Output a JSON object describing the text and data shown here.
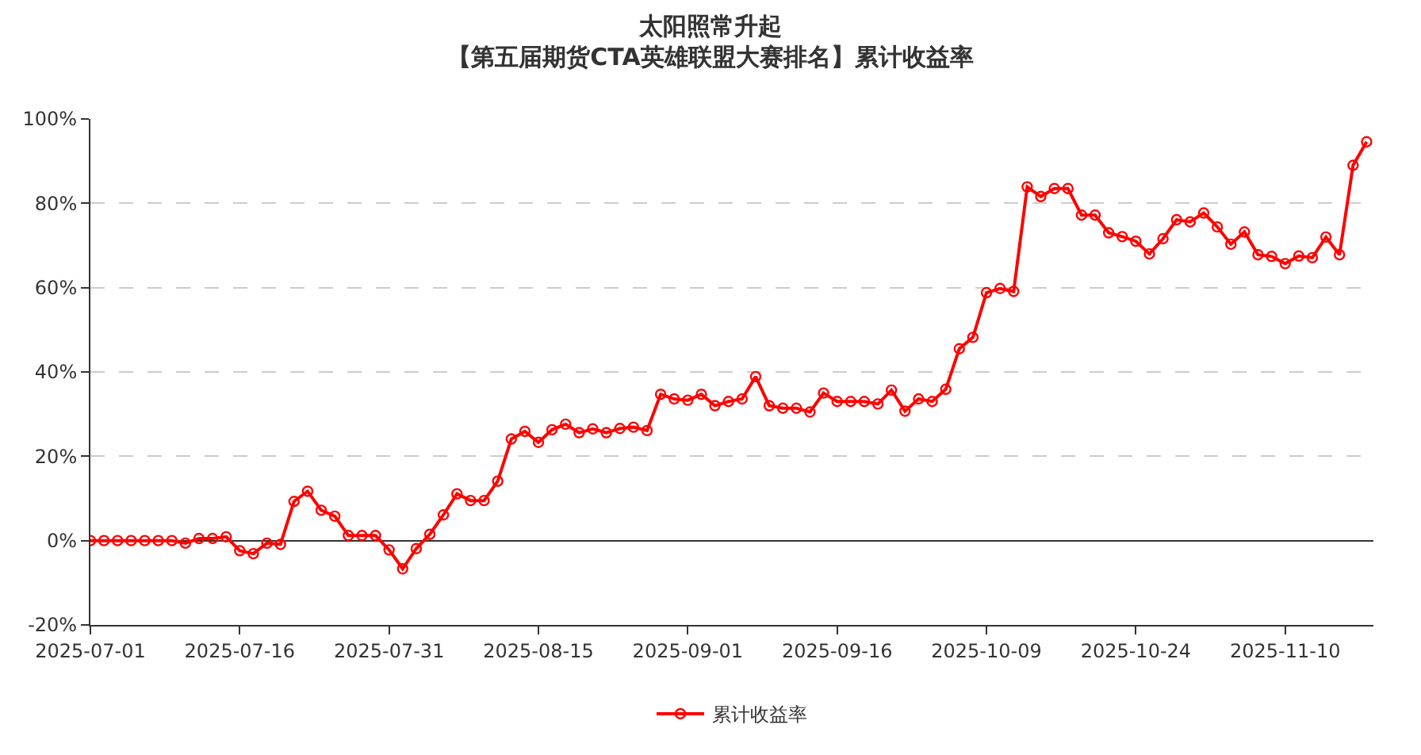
{
  "chart_data": {
    "type": "line",
    "title": "太阳照常升起",
    "subtitle": "【第五届期货CTA英雄联盟大赛排名】累计收益率",
    "categories": [
      "2025-07-01",
      null,
      null,
      null,
      null,
      null,
      null,
      null,
      null,
      null,
      null,
      "2025-07-16",
      null,
      null,
      null,
      null,
      null,
      null,
      null,
      null,
      null,
      null,
      "2025-07-31",
      null,
      null,
      null,
      null,
      null,
      null,
      null,
      null,
      null,
      null,
      "2025-08-15",
      null,
      null,
      null,
      null,
      null,
      null,
      null,
      null,
      null,
      null,
      "2025-09-01",
      null,
      null,
      null,
      null,
      null,
      null,
      null,
      null,
      null,
      null,
      "2025-09-16",
      null,
      null,
      null,
      null,
      null,
      null,
      null,
      null,
      null,
      null,
      "2025-10-09",
      null,
      null,
      null,
      null,
      null,
      null,
      null,
      null,
      null,
      null,
      "2025-10-24",
      null,
      null,
      null,
      null,
      null,
      null,
      null,
      null,
      null,
      null,
      "2025-11-10",
      null,
      null,
      null,
      null,
      null,
      null
    ],
    "series": [
      {
        "name": "累计收益率",
        "color": "#ff0000",
        "values": [
          0,
          0,
          0,
          0,
          0,
          0,
          0,
          -0.6,
          0.5,
          0.5,
          0.9,
          -2.4,
          -3.1,
          -0.6,
          -0.9,
          9.3,
          11.7,
          7.2,
          5.8,
          1.2,
          1.2,
          1.2,
          -2.2,
          -6.7,
          -1.9,
          1.5,
          6.1,
          11.1,
          9.5,
          9.5,
          14.1,
          24.1,
          25.9,
          23.3,
          26.3,
          27.6,
          25.6,
          26.5,
          25.6,
          26.6,
          26.9,
          26.1,
          34.7,
          33.6,
          33.3,
          34.7,
          32.0,
          33.0,
          33.6,
          38.9,
          32.0,
          31.4,
          31.4,
          30.5,
          35.0,
          33.0,
          33.0,
          33.0,
          32.4,
          35.7,
          30.7,
          33.6,
          33.0,
          35.9,
          45.5,
          48.2,
          58.8,
          59.8,
          59.1,
          83.9,
          81.6,
          83.5,
          83.5,
          77.2,
          77.2,
          73.0,
          72.1,
          71.0,
          68.0,
          71.6,
          76.1,
          75.6,
          77.7,
          74.4,
          70.3,
          73.2,
          67.8,
          67.4,
          65.7,
          67.5,
          67.1,
          72.0,
          67.8,
          89.0,
          94.6
        ]
      }
    ],
    "ylim": [
      -20,
      100
    ],
    "yticks": [
      {
        "value": -20,
        "label": "-20%"
      },
      {
        "value": 0,
        "label": "0%"
      },
      {
        "value": 20,
        "label": "20%"
      },
      {
        "value": 40,
        "label": "40%"
      },
      {
        "value": 60,
        "label": "60%"
      },
      {
        "value": 80,
        "label": "80%"
      },
      {
        "value": 100,
        "label": "100%"
      }
    ],
    "grid": "y",
    "legend": "bottom",
    "marker": "circle",
    "line_style": "solid"
  }
}
